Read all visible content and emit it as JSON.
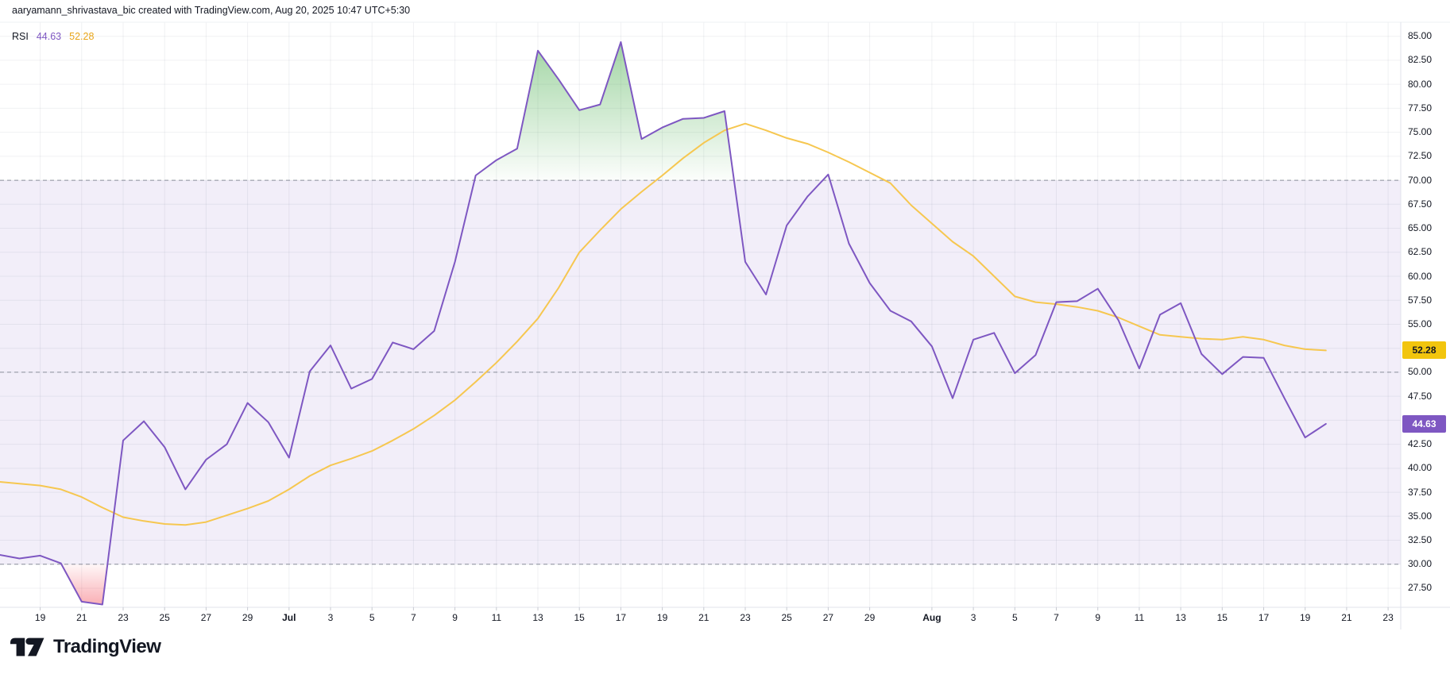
{
  "header": {
    "attribution": "aaryamann_shrivastava_bic created with TradingView.com, Aug 20, 2025 10:47 UTC+5:30"
  },
  "legend": {
    "indicator_label": "RSI",
    "rsi_value": "44.63",
    "ma_value": "52.28"
  },
  "colors": {
    "rsi_line": "#7E57C2",
    "ma_line": "#F6C750",
    "band_fill": "rgba(126,87,194,0.10)",
    "overbought_fill": "#4CAF50",
    "oversold_fill": "#F23645",
    "dashed_level": "#8A8E9B",
    "grid": "rgba(46,54,84,0.07)",
    "axis_text": "#131722",
    "separator": "#E0E3EB"
  },
  "y_axis": {
    "tick_labels": [
      "85.00",
      "82.50",
      "80.00",
      "77.50",
      "75.00",
      "72.50",
      "70.00",
      "67.50",
      "65.00",
      "62.50",
      "60.00",
      "57.50",
      "55.00",
      "52.50",
      "50.00",
      "47.50",
      "45.00",
      "42.50",
      "40.00",
      "37.50",
      "35.00",
      "32.50",
      "30.00",
      "27.50"
    ],
    "badges": [
      {
        "text": "52.28",
        "value": 52.28,
        "bg": "#F2C50D",
        "fg": "#131722",
        "name": "ma-price-badge"
      },
      {
        "text": "44.63",
        "value": 44.63,
        "bg": "#7E57C2",
        "fg": "#FFFFFF",
        "name": "rsi-price-badge"
      }
    ]
  },
  "x_axis": {
    "ticks": [
      {
        "label": "19",
        "i": 2
      },
      {
        "label": "21",
        "i": 4
      },
      {
        "label": "23",
        "i": 6
      },
      {
        "label": "25",
        "i": 8
      },
      {
        "label": "27",
        "i": 10
      },
      {
        "label": "29",
        "i": 12
      },
      {
        "label": "Jul",
        "i": 14,
        "month": true
      },
      {
        "label": "3",
        "i": 16
      },
      {
        "label": "5",
        "i": 18
      },
      {
        "label": "7",
        "i": 20
      },
      {
        "label": "9",
        "i": 22
      },
      {
        "label": "11",
        "i": 24
      },
      {
        "label": "13",
        "i": 26
      },
      {
        "label": "15",
        "i": 28
      },
      {
        "label": "17",
        "i": 30
      },
      {
        "label": "19",
        "i": 32
      },
      {
        "label": "21",
        "i": 34
      },
      {
        "label": "23",
        "i": 36
      },
      {
        "label": "25",
        "i": 38
      },
      {
        "label": "27",
        "i": 40
      },
      {
        "label": "29",
        "i": 42
      },
      {
        "label": "Aug",
        "i": 45,
        "month": true
      },
      {
        "label": "3",
        "i": 47
      },
      {
        "label": "5",
        "i": 49
      },
      {
        "label": "7",
        "i": 51
      },
      {
        "label": "9",
        "i": 53
      },
      {
        "label": "11",
        "i": 55
      },
      {
        "label": "13",
        "i": 57
      },
      {
        "label": "15",
        "i": 59
      },
      {
        "label": "17",
        "i": 61
      },
      {
        "label": "19",
        "i": 63
      },
      {
        "label": "21",
        "i": 65
      },
      {
        "label": "23",
        "i": 67
      }
    ]
  },
  "chart_data": {
    "type": "line",
    "title": "RSI",
    "legend_position": "top-left",
    "grid": true,
    "ylim": [
      25.5,
      86.4
    ],
    "y_tick_step": 2.5,
    "levels": {
      "overbought": 70,
      "middle": 50,
      "oversold": 30
    },
    "x": [
      "Jun 17",
      "Jun 18",
      "Jun 19",
      "Jun 20",
      "Jun 21",
      "Jun 22",
      "Jun 23",
      "Jun 24",
      "Jun 25",
      "Jun 26",
      "Jun 27",
      "Jun 28",
      "Jun 29",
      "Jun 30",
      "Jul 1",
      "Jul 2",
      "Jul 3",
      "Jul 4",
      "Jul 5",
      "Jul 6",
      "Jul 7",
      "Jul 8",
      "Jul 9",
      "Jul 10",
      "Jul 11",
      "Jul 12",
      "Jul 13",
      "Jul 14",
      "Jul 15",
      "Jul 16",
      "Jul 17",
      "Jul 18",
      "Jul 19",
      "Jul 20",
      "Jul 21",
      "Jul 22",
      "Jul 23",
      "Jul 24",
      "Jul 25",
      "Jul 26",
      "Jul 27",
      "Jul 28",
      "Jul 29",
      "Jul 30",
      "Jul 31",
      "Aug 1",
      "Aug 2",
      "Aug 3",
      "Aug 4",
      "Aug 5",
      "Aug 6",
      "Aug 7",
      "Aug 8",
      "Aug 9",
      "Aug 10",
      "Aug 11",
      "Aug 12",
      "Aug 13",
      "Aug 14",
      "Aug 15",
      "Aug 16",
      "Aug 17",
      "Aug 18",
      "Aug 19",
      "Aug 20"
    ],
    "series": [
      {
        "name": "RSI",
        "color": "#7E57C2",
        "last_value": 44.63,
        "values": [
          31.0,
          30.6,
          30.9,
          30.1,
          26.1,
          25.8,
          42.9,
          44.9,
          42.2,
          37.8,
          40.9,
          42.5,
          46.8,
          44.8,
          41.1,
          50.1,
          52.8,
          48.3,
          49.3,
          53.1,
          52.4,
          54.3,
          61.5,
          70.5,
          72.1,
          73.3,
          83.5,
          80.5,
          77.3,
          77.9,
          84.4,
          74.3,
          75.5,
          76.4,
          76.5,
          77.2,
          61.5,
          58.1,
          65.3,
          68.3,
          70.6,
          63.4,
          59.3,
          56.4,
          55.3,
          52.7,
          47.3,
          53.4,
          54.1,
          49.9,
          51.8,
          57.3,
          57.4,
          58.7,
          55.4,
          50.4,
          56.0,
          57.2,
          51.9,
          49.8,
          51.6,
          51.5,
          47.3,
          43.2,
          44.63
        ]
      },
      {
        "name": "RSI-based MA",
        "color": "#F6C750",
        "last_value": 52.28,
        "values": [
          38.6,
          38.4,
          38.2,
          37.8,
          37.0,
          35.9,
          34.9,
          34.5,
          34.2,
          34.1,
          34.4,
          35.1,
          35.8,
          36.6,
          37.8,
          39.2,
          40.3,
          41.0,
          41.8,
          42.9,
          44.1,
          45.5,
          47.1,
          49.0,
          51.0,
          53.2,
          55.6,
          58.8,
          62.5,
          64.8,
          67.0,
          68.8,
          70.5,
          72.3,
          73.9,
          75.2,
          75.9,
          75.2,
          74.4,
          73.8,
          72.9,
          71.9,
          70.8,
          69.7,
          67.4,
          65.5,
          63.6,
          62.1,
          60.0,
          57.9,
          57.3,
          57.1,
          56.8,
          56.4,
          55.7,
          54.8,
          53.9,
          53.7,
          53.5,
          53.4,
          53.7,
          53.4,
          52.8,
          52.4,
          52.28
        ]
      }
    ]
  },
  "branding": {
    "logo_text": "TradingView"
  }
}
